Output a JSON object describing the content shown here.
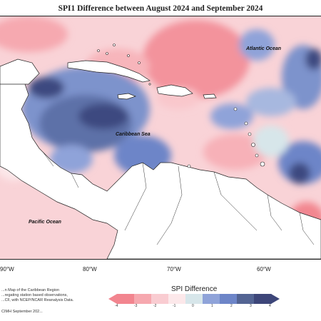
{
  "title": "SPI1 Difference between August 2024 and September 2024",
  "ocean_labels": {
    "atlantic": "Atlantic Ocean",
    "caribbean": "Caribbean Sea",
    "pacific": "Pacific Ocean"
  },
  "longitude_ticks": [
    "90°W",
    "80°W",
    "70°W",
    "60°W"
  ],
  "footnote": {
    "line1": "...n Map of the Caribbean Region",
    "line2": "...regating station based observations,",
    "line3": "...CF, with NCEP/NCAR Reanalysis Data.",
    "credit": "CIMH September 202..."
  },
  "legend": {
    "title": "SPI Difference",
    "ticks": [
      "-4",
      "-3",
      "-2",
      "-1",
      "0",
      "1",
      "2",
      "3",
      "4"
    ],
    "colors": [
      "#f2858f",
      "#f6a8af",
      "#f9ccd1",
      "#fce8ea",
      "#d7e6ea",
      "#8fa3d9",
      "#6d85c8",
      "#536493",
      "#3d4679"
    ]
  }
}
